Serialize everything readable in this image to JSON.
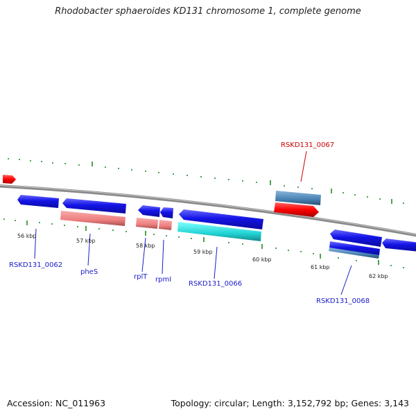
{
  "title": "Rhodobacter sphaeroides KD131 chromosome 1, complete genome",
  "footer": {
    "accession": "Accession: NC_011963",
    "summary": "Topology: circular; Length: 3,152,792 bp; Genes: 3,143"
  },
  "ruler": [
    "56 kbp",
    "57 kbp",
    "58 kbp",
    "59 kbp",
    "60 kbp",
    "61 kbp",
    "62 kbp"
  ],
  "genes": [
    {
      "name": "RSKD131_0062",
      "color": "#1a1ac8"
    },
    {
      "name": "pheS",
      "color": "#1a1ac8"
    },
    {
      "name": "rplT",
      "color": "#1a1ac8"
    },
    {
      "name": "rpmI",
      "color": "#1a1ac8"
    },
    {
      "name": "RSKD131_0066",
      "color": "#1a1ac8"
    },
    {
      "name": "RSKD131_0067",
      "color": "#cc0000"
    },
    {
      "name": "RSKD131_0068",
      "color": "#1a1ac8"
    }
  ],
  "colors": {
    "cds": "#1414e6",
    "gene_pink": "#f08080",
    "gene_red": "#ff0000",
    "gene_cyan": "#22d3d3",
    "gene_steel": "#4682b4",
    "backbone": "#808080",
    "ticks": "#1f8a1f"
  }
}
